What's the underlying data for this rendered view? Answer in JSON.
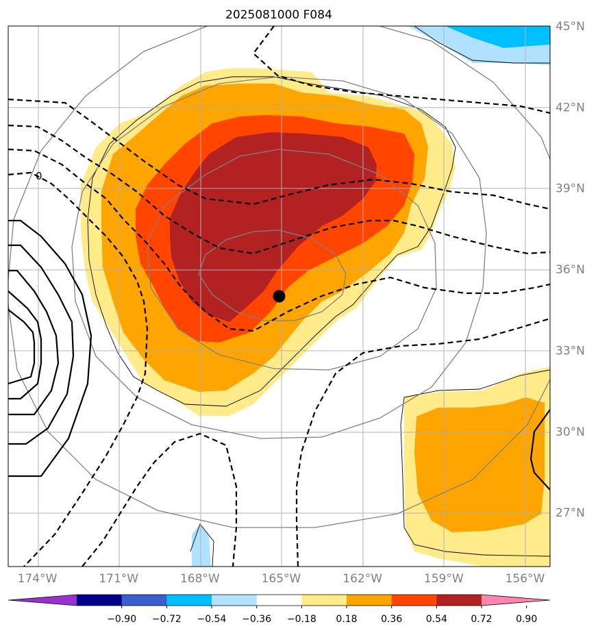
{
  "title": "2025081000 F084",
  "map": {
    "lon_range": [
      -175,
      -155
    ],
    "lat_range": [
      25,
      45
    ],
    "lat_ticks": [
      {
        "value": 45,
        "label": "45°N"
      },
      {
        "value": 42,
        "label": "42°N"
      },
      {
        "value": 39,
        "label": "39°N"
      },
      {
        "value": 36,
        "label": "36°N"
      },
      {
        "value": 33,
        "label": "33°N"
      },
      {
        "value": 30,
        "label": "30°N"
      },
      {
        "value": 27,
        "label": "27°N"
      }
    ],
    "lon_ticks": [
      {
        "value": -174,
        "label": "174°W"
      },
      {
        "value": -171,
        "label": "171°W"
      },
      {
        "value": -168,
        "label": "168°W"
      },
      {
        "value": -165,
        "label": "165°W"
      },
      {
        "value": -162,
        "label": "162°W"
      },
      {
        "value": -159,
        "label": "159°W"
      },
      {
        "value": -156,
        "label": "156°W"
      }
    ],
    "center_marker": {
      "lon": -165,
      "lat": 35
    },
    "contour_label": "0"
  },
  "colorbar": {
    "ticks": [
      "−0.90",
      "−0.72",
      "−0.54",
      "−0.36",
      "−0.18",
      "0.18",
      "0.36",
      "0.54",
      "0.72",
      "0.90"
    ],
    "colors": [
      "#9932cc",
      "#00008b",
      "#3a5fcd",
      "#00bfff",
      "#b0e2ff",
      "#ffffff",
      "#ffeb8a",
      "#ffa500",
      "#ff4500",
      "#b22222",
      "#ff85b0"
    ]
  },
  "colors": {
    "fill_036": "#ffeb8a",
    "fill_054": "#ffa500",
    "fill_072": "#ff4500",
    "fill_090": "#b22222",
    "fill_neg036": "#00bfff",
    "fill_neg018": "#b0e2ff",
    "grid": "#b0b0b0",
    "range_rings": "#808080"
  }
}
